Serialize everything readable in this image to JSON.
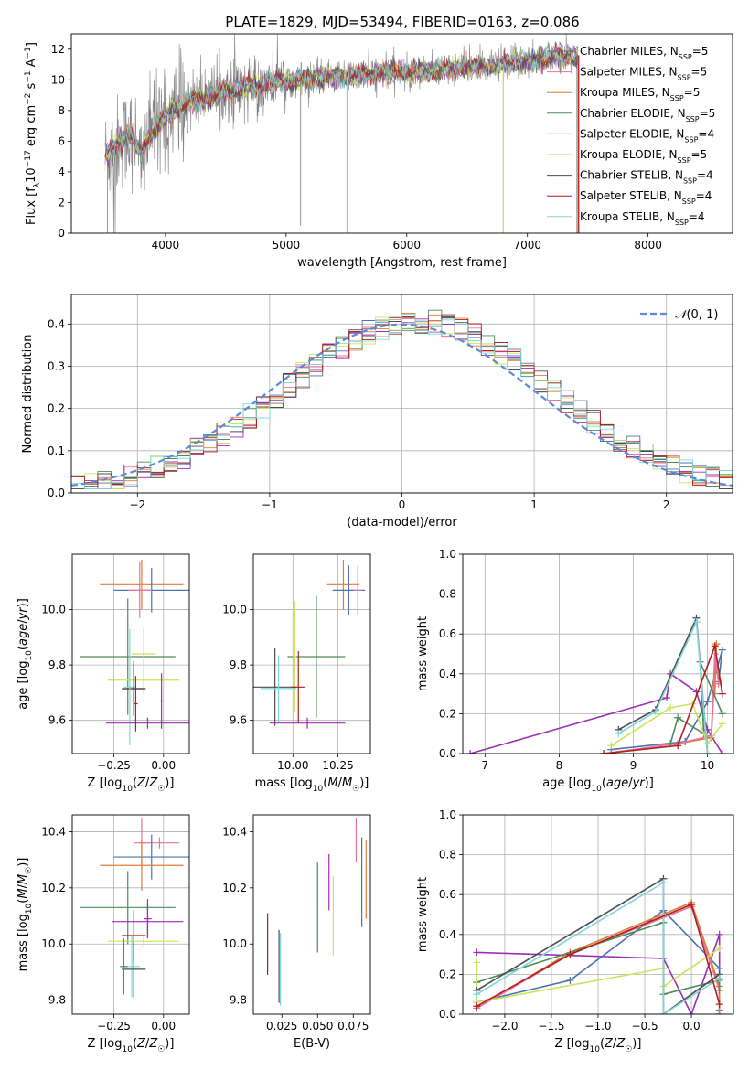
{
  "figure": {
    "title": "PLATE=1829, MJD=53494, FIBERID=0163, z=0.086"
  },
  "chart_data": [
    {
      "type": "line",
      "id": "spectrum",
      "xlabel": "wavelength [Angstrom, rest frame]",
      "ylabel": "Flux [f_λ 10^-17 erg cm^-2 s^-1 A^-1]",
      "xlim": [
        3220,
        8700
      ],
      "ylim": [
        0,
        13
      ],
      "xticks": [
        4000,
        5000,
        6000,
        7000,
        8000
      ],
      "yticks": [
        0,
        2,
        4,
        6,
        8,
        10,
        12
      ],
      "legend_position": "right",
      "data_color": "#808080",
      "spectrum_anchors": {
        "x": [
          3500,
          3600,
          3700,
          3800,
          3900,
          4000,
          4100,
          4300,
          4500,
          4700,
          5000,
          5300,
          5600,
          5900,
          6200,
          6500,
          6800,
          7000,
          7100,
          7200,
          7420
        ],
        "y": [
          5.0,
          5.8,
          6.5,
          5.2,
          6.8,
          7.6,
          8.2,
          8.8,
          9.2,
          9.6,
          9.9,
          10.1,
          10.3,
          10.5,
          10.6,
          10.8,
          11.0,
          11.2,
          11.3,
          11.5,
          11.6
        ]
      },
      "series": [
        {
          "name": "Chabrier MILES, N_SSP=5",
          "label": "Chabrier MILES, N",
          "sub": "SSP",
          "tail": "=5",
          "color": "#4c72b0"
        },
        {
          "name": "Salpeter MILES, N_SSP=5",
          "label": "Salpeter MILES, N",
          "sub": "SSP",
          "tail": "=5",
          "color": "#e8739b"
        },
        {
          "name": "Kroupa MILES, N_SSP=5",
          "label": "Kroupa MILES, N",
          "sub": "SSP",
          "tail": "=5",
          "color": "#e07b39"
        },
        {
          "name": "Chabrier ELODIE, N_SSP=5",
          "label": "Chabrier ELODIE, N",
          "sub": "SSP",
          "tail": "=5",
          "color": "#4f8a5b"
        },
        {
          "name": "Salpeter ELODIE, N_SSP=4",
          "label": "Salpeter ELODIE, N",
          "sub": "SSP",
          "tail": "=4",
          "color": "#9b30b0"
        },
        {
          "name": "Kroupa ELODIE, N_SSP=5",
          "label": "Kroupa ELODIE, N",
          "sub": "SSP",
          "tail": "=5",
          "color": "#c8e65a"
        },
        {
          "name": "Chabrier STELIB, N_SSP=4",
          "label": "Chabrier STELIB, N",
          "sub": "SSP",
          "tail": "=4",
          "color": "#4d4d4d"
        },
        {
          "name": "Salpeter STELIB, N_SSP=4",
          "label": "Salpeter STELIB, N",
          "sub": "SSP",
          "tail": "=4",
          "color": "#b01e1e"
        },
        {
          "name": "Kroupa STELIB, N_SSP=4",
          "label": "Kroupa STELIB, N",
          "sub": "SSP",
          "tail": "=4",
          "color": "#7fd6dc"
        }
      ]
    },
    {
      "type": "line",
      "id": "residual_histogram",
      "xlabel": "(data-model)/error",
      "ylabel": "Normed distribution",
      "xlim": [
        -2.5,
        2.5
      ],
      "ylim": [
        0,
        0.47
      ],
      "xticks": [
        -2,
        -1,
        0,
        1,
        2
      ],
      "yticks": [
        0.0,
        0.1,
        0.2,
        0.3,
        0.4
      ],
      "grid": true,
      "legend_position": "top-right",
      "reference": {
        "name": "N(0,1)",
        "label": "(0, 1)",
        "color": "#5b8bd6",
        "style": "dashed"
      },
      "bin_width": 0.1,
      "bin_start": -2.5
    },
    {
      "type": "scatter",
      "id": "age_vs_Z",
      "xlabel": "Z [log10(Z/Z☉)]",
      "ylabel": "age [log10(age/yr)]",
      "xlim": [
        -0.46,
        0.13
      ],
      "ylim": [
        9.48,
        10.2
      ],
      "xticks": [
        -0.25,
        0.0
      ],
      "yticks": [
        9.6,
        9.8,
        10.0
      ],
      "grid": true,
      "points": [
        {
          "x": -0.11,
          "xerr": 0.21,
          "y": 10.09,
          "yerr": 0.09,
          "color": "#e07b39"
        },
        {
          "x": -0.06,
          "xerr": 0.19,
          "y": 10.07,
          "yerr": 0.08,
          "color": "#4c72b0"
        },
        {
          "x": -0.12,
          "xerr": 0.06,
          "y": 10.07,
          "yerr": 0.1,
          "color": "#e8739b"
        },
        {
          "x": -0.18,
          "xerr": 0.24,
          "y": 9.83,
          "yerr": 0.21,
          "color": "#4f8a5b"
        },
        {
          "x": -0.1,
          "xerr": 0.06,
          "y": 9.84,
          "yerr": 0.09,
          "color": "#c8e65a"
        },
        {
          "x": -0.1,
          "xerr": 0.18,
          "y": 9.745,
          "yerr": 0.05,
          "color": "#c8e65a"
        },
        {
          "x": -0.15,
          "xerr": 0.06,
          "y": 9.715,
          "yerr": 0.1,
          "color": "#4d4d4d"
        },
        {
          "x": -0.17,
          "xerr": 0.03,
          "y": 9.72,
          "yerr": 0.21,
          "color": "#7fd6dc"
        },
        {
          "x": -0.15,
          "xerr": 0.06,
          "y": 9.71,
          "yerr": 0.09,
          "color": "#b01e1e"
        },
        {
          "x": -0.08,
          "xerr": 0.21,
          "y": 9.59,
          "yerr": 0.02,
          "color": "#9b30b0"
        },
        {
          "x": -0.14,
          "xerr": 0.01,
          "y": 9.66,
          "yerr": 0.1,
          "color": "#b01e1e"
        },
        {
          "x": -0.01,
          "xerr": 0.01,
          "y": 9.67,
          "yerr": 0.1,
          "color": "#9b30b0"
        }
      ]
    },
    {
      "type": "scatter",
      "id": "age_vs_mass",
      "xlabel": "mass [log10(M/M☉)]",
      "ylabel": "",
      "xlim": [
        9.78,
        10.43
      ],
      "ylim": [
        9.48,
        10.2
      ],
      "xticks": [
        10.0,
        10.25
      ],
      "yticks": [
        9.6,
        9.8,
        10.0
      ],
      "grid": true,
      "points": [
        {
          "x": 10.28,
          "xerr": 0.09,
          "y": 10.09,
          "yerr": 0.09,
          "color": "#e07b39"
        },
        {
          "x": 10.31,
          "xerr": 0.09,
          "y": 10.07,
          "yerr": 0.09,
          "color": "#4c72b0"
        },
        {
          "x": 10.36,
          "xerr": 0.02,
          "y": 10.07,
          "yerr": 0.09,
          "color": "#e8739b"
        },
        {
          "x": 10.13,
          "xerr": 0.16,
          "y": 9.83,
          "yerr": 0.22,
          "color": "#4f8a5b"
        },
        {
          "x": 10.01,
          "xerr": 0.01,
          "y": 9.83,
          "yerr": 0.2,
          "color": "#c8e65a"
        },
        {
          "x": 9.9,
          "xerr": 0.12,
          "y": 9.72,
          "yerr": 0.14,
          "color": "#4d4d4d"
        },
        {
          "x": 9.92,
          "xerr": 0.1,
          "y": 9.715,
          "yerr": 0.12,
          "color": "#7fd6dc"
        },
        {
          "x": 10.03,
          "xerr": 0.04,
          "y": 9.72,
          "yerr": 0.13,
          "color": "#b01e1e"
        },
        {
          "x": 10.08,
          "xerr": 0.21,
          "y": 9.59,
          "yerr": 0.02,
          "color": "#9b30b0"
        }
      ]
    },
    {
      "type": "line",
      "id": "mass_weight_vs_age",
      "xlabel": "age [log10(age/yr)]",
      "ylabel": "mass weight",
      "xlim": [
        6.7,
        10.35
      ],
      "ylim": [
        0,
        1.0
      ],
      "xticks": [
        7,
        8,
        9,
        10
      ],
      "yticks": [
        0.0,
        0.2,
        0.4,
        0.6,
        0.8,
        1.0
      ],
      "grid": true,
      "series": [
        {
          "color": "#9b30b0",
          "x": [
            6.8,
            9.45,
            9.5,
            9.85,
            10.0,
            10.2
          ],
          "y": [
            0.0,
            0.28,
            0.4,
            0.31,
            0.12,
            0.0
          ]
        },
        {
          "color": "#4c72b0",
          "x": [
            8.7,
            9.7,
            10.0,
            10.2,
            10.15
          ],
          "y": [
            0.02,
            0.06,
            0.26,
            0.52,
            0.36
          ]
        },
        {
          "color": "#e07b39",
          "x": [
            8.6,
            9.6,
            10.05,
            10.12,
            10.1
          ],
          "y": [
            0.0,
            0.05,
            0.08,
            0.55,
            0.3
          ]
        },
        {
          "color": "#e8739b",
          "x": [
            8.6,
            9.6,
            10.05,
            10.1,
            10.15
          ],
          "y": [
            0.0,
            0.05,
            0.09,
            0.5,
            0.35
          ]
        },
        {
          "color": "#4f8a5b",
          "x": [
            9.5,
            9.6,
            9.95,
            9.9,
            10.2
          ],
          "y": [
            0.05,
            0.18,
            0.1,
            0.46,
            0.2
          ]
        },
        {
          "color": "#c8e65a",
          "x": [
            8.7,
            9.5,
            9.8,
            10.0,
            10.2
          ],
          "y": [
            0.04,
            0.23,
            0.25,
            0.05,
            0.15
          ]
        },
        {
          "color": "#4d4d4d",
          "x": [
            8.8,
            9.3,
            9.85,
            10.0
          ],
          "y": [
            0.12,
            0.22,
            0.68,
            0.0
          ]
        },
        {
          "color": "#7fd6dc",
          "x": [
            8.8,
            9.3,
            9.85,
            10.0
          ],
          "y": [
            0.1,
            0.21,
            0.66,
            0.0
          ]
        },
        {
          "color": "#b01e1e",
          "x": [
            8.6,
            9.6,
            10.1,
            10.2
          ],
          "y": [
            0.0,
            0.04,
            0.54,
            0.3
          ]
        }
      ]
    },
    {
      "type": "scatter",
      "id": "mass_vs_Z",
      "xlabel": "Z [log10(Z/Z☉)]",
      "ylabel": "mass [log10(M/M☉)]",
      "xlim": [
        -0.46,
        0.13
      ],
      "ylim": [
        9.75,
        10.46
      ],
      "xticks": [
        -0.25,
        0.0
      ],
      "yticks": [
        9.8,
        10.0,
        10.2,
        10.4
      ],
      "grid": true,
      "points": [
        {
          "x": -0.02,
          "xerr": 0.1,
          "y": 10.36,
          "yerr": 0.02,
          "color": "#e8739b"
        },
        {
          "x": -0.11,
          "xerr": 0.04,
          "y": 10.36,
          "yerr": 0.09,
          "color": "#e8739b"
        },
        {
          "x": -0.06,
          "xerr": 0.19,
          "y": 10.31,
          "yerr": 0.08,
          "color": "#4c72b0"
        },
        {
          "x": -0.11,
          "xerr": 0.21,
          "y": 10.28,
          "yerr": 0.09,
          "color": "#e07b39"
        },
        {
          "x": -0.18,
          "xerr": 0.24,
          "y": 10.13,
          "yerr": 0.13,
          "color": "#4f8a5b"
        },
        {
          "x": -0.08,
          "xerr": 0.18,
          "y": 10.08,
          "yerr": 0.06,
          "color": "#9b30b0"
        },
        {
          "x": -0.08,
          "xerr": 0.02,
          "y": 10.09,
          "yerr": 0.07,
          "color": "#9b30b0"
        },
        {
          "x": -0.15,
          "xerr": 0.06,
          "y": 10.03,
          "yerr": 0.09,
          "color": "#b01e1e"
        },
        {
          "x": -0.1,
          "xerr": 0.18,
          "y": 10.01,
          "yerr": 0.02,
          "color": "#c8e65a"
        },
        {
          "x": -0.16,
          "xerr": 0.04,
          "y": 9.92,
          "yerr": 0.11,
          "color": "#7fd6dc"
        },
        {
          "x": -0.15,
          "xerr": 0.06,
          "y": 9.91,
          "yerr": 0.1,
          "color": "#4d4d4d"
        },
        {
          "x": -0.2,
          "xerr": 0.02,
          "y": 9.92,
          "yerr": 0.1,
          "color": "#4f8a5b"
        }
      ]
    },
    {
      "type": "scatter",
      "id": "mass_vs_EBV",
      "xlabel": "E(B-V)",
      "ylabel": "",
      "xlim": [
        0.005,
        0.087
      ],
      "ylim": [
        9.75,
        10.46
      ],
      "xticks": [
        0.025,
        0.05,
        0.075
      ],
      "yticks": [
        9.8,
        10.0,
        10.2,
        10.4
      ],
      "grid": false,
      "points": [
        {
          "x": 0.015,
          "y": 10.0,
          "yerr": 0.11,
          "color": "#b01e1e"
        },
        {
          "x": 0.023,
          "y": 9.92,
          "yerr": 0.13,
          "color": "#4d4d4d"
        },
        {
          "x": 0.024,
          "y": 9.91,
          "yerr": 0.13,
          "color": "#7fd6dc"
        },
        {
          "x": 0.05,
          "y": 10.13,
          "yerr": 0.16,
          "color": "#4f8a5b"
        },
        {
          "x": 0.058,
          "y": 10.22,
          "yerr": 0.1,
          "color": "#9b30b0"
        },
        {
          "x": 0.061,
          "y": 10.1,
          "yerr": 0.14,
          "color": "#c8e65a"
        },
        {
          "x": 0.077,
          "y": 10.37,
          "yerr": 0.08,
          "color": "#e8739b"
        },
        {
          "x": 0.081,
          "y": 10.22,
          "yerr": 0.16,
          "color": "#4c72b0"
        },
        {
          "x": 0.084,
          "y": 10.23,
          "yerr": 0.14,
          "color": "#e07b39"
        }
      ]
    },
    {
      "type": "line",
      "id": "mass_weight_vs_Z",
      "xlabel": "Z [log10(Z/Z☉)]",
      "ylabel": "mass weight",
      "xlim": [
        -2.45,
        0.45
      ],
      "ylim": [
        0,
        1.0
      ],
      "xticks": [
        -2.0,
        -1.5,
        -1.0,
        -0.5,
        0.0
      ],
      "yticks": [
        0.0,
        0.2,
        0.4,
        0.6,
        0.8,
        1.0
      ],
      "grid": true,
      "series": [
        {
          "color": "#9b30b0",
          "x": [
            -2.3,
            -0.3,
            0.0,
            0.3,
            0.3
          ],
          "y": [
            0.31,
            0.28,
            0.0,
            0.4,
            0.0
          ]
        },
        {
          "color": "#4c72b0",
          "x": [
            -2.3,
            -1.3,
            -0.3,
            0.3,
            0.3
          ],
          "y": [
            0.06,
            0.17,
            0.52,
            0.23,
            0.02
          ]
        },
        {
          "color": "#e07b39",
          "x": [
            -2.3,
            -1.3,
            0.0,
            0.3,
            0.3
          ],
          "y": [
            0.03,
            0.31,
            0.56,
            0.14,
            0.0
          ]
        },
        {
          "color": "#e8739b",
          "x": [
            -2.3,
            -1.3,
            0.0,
            0.3
          ],
          "y": [
            0.03,
            0.3,
            0.54,
            0.12
          ]
        },
        {
          "color": "#4f8a5b",
          "x": [
            -2.3,
            -0.3,
            -0.3,
            0.3,
            0.3
          ],
          "y": [
            0.16,
            0.46,
            0.1,
            0.17,
            0.12
          ]
        },
        {
          "color": "#c8e65a",
          "x": [
            -2.3,
            -2.3,
            -0.3,
            -0.3,
            0.3
          ],
          "y": [
            0.26,
            0.06,
            0.23,
            0.14,
            0.33
          ]
        },
        {
          "color": "#4d4d4d",
          "x": [
            -2.3,
            -0.3,
            -0.3,
            0.3
          ],
          "y": [
            0.12,
            0.68,
            0.0,
            0.2
          ]
        },
        {
          "color": "#7fd6dc",
          "x": [
            -2.3,
            -0.3,
            -0.3,
            0.3
          ],
          "y": [
            0.1,
            0.66,
            0.0,
            0.18
          ]
        },
        {
          "color": "#b01e1e",
          "x": [
            -2.3,
            -1.3,
            0.0,
            0.3
          ],
          "y": [
            0.04,
            0.3,
            0.55,
            0.05
          ]
        }
      ]
    }
  ]
}
